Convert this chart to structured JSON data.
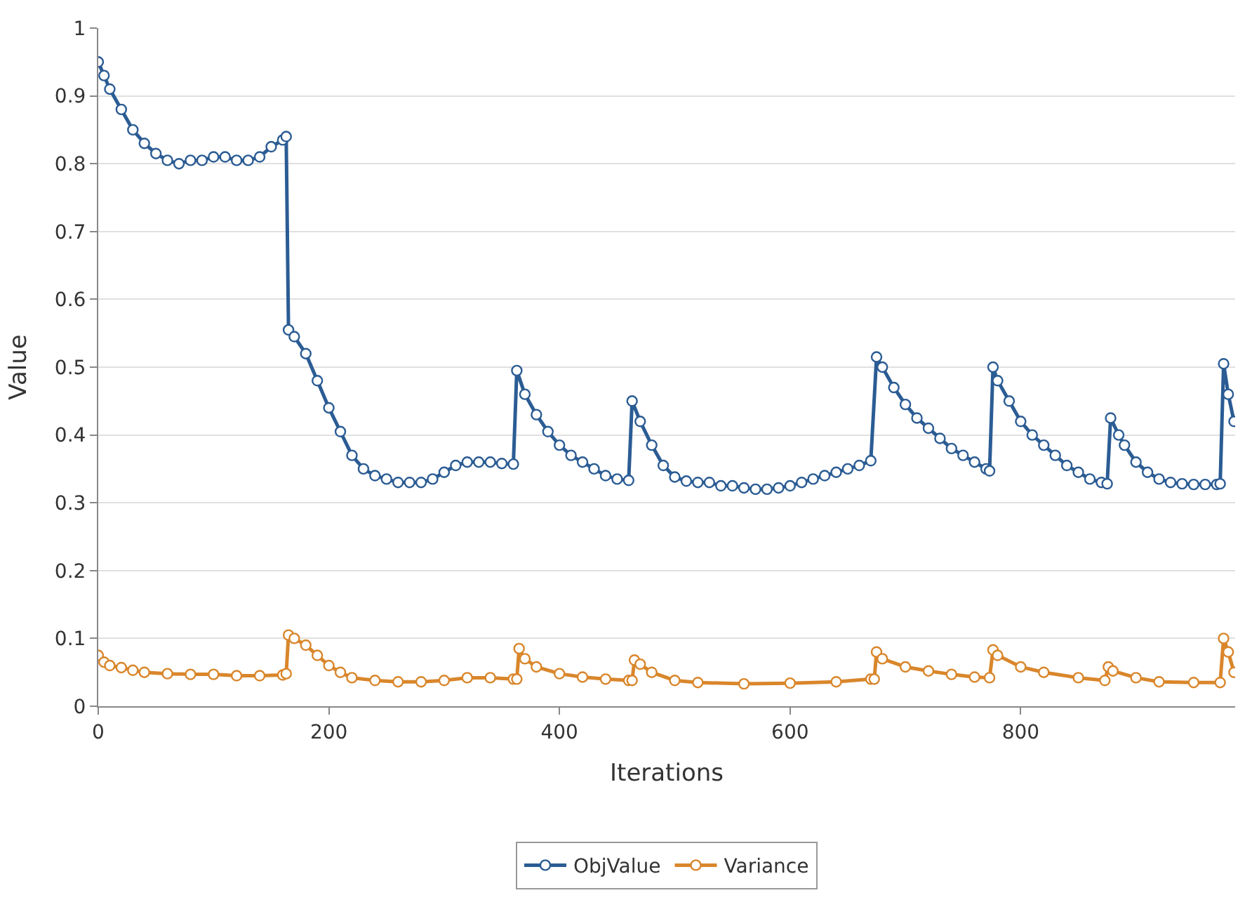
{
  "chart_data": {
    "type": "line",
    "xlabel": "Iterations",
    "ylabel": "Value",
    "xlim": [
      0,
      986
    ],
    "xticks": [
      0,
      200,
      400,
      600,
      800
    ],
    "ylim": [
      0,
      1
    ],
    "yticks": [
      0,
      0.1,
      0.2,
      0.3,
      0.4,
      0.5,
      0.6,
      0.7,
      0.8,
      0.9,
      1
    ],
    "grid": "y",
    "legend": "bottom",
    "marker": "circle",
    "line_style": "solid",
    "series": [
      {
        "name": "ObjValue",
        "color": "#2b5c94",
        "x": [
          0,
          5,
          10,
          20,
          30,
          40,
          50,
          60,
          70,
          80,
          90,
          100,
          110,
          120,
          130,
          140,
          150,
          160,
          163,
          165,
          170,
          180,
          190,
          200,
          210,
          220,
          230,
          240,
          250,
          260,
          270,
          280,
          290,
          300,
          310,
          320,
          330,
          340,
          350,
          360,
          363,
          370,
          380,
          390,
          400,
          410,
          420,
          430,
          440,
          450,
          460,
          463,
          470,
          480,
          490,
          500,
          510,
          520,
          530,
          540,
          550,
          560,
          570,
          580,
          590,
          600,
          610,
          620,
          630,
          640,
          650,
          660,
          670,
          675,
          680,
          690,
          700,
          710,
          720,
          730,
          740,
          750,
          760,
          770,
          773,
          776,
          780,
          790,
          800,
          810,
          820,
          830,
          840,
          850,
          860,
          870,
          875,
          878,
          885,
          890,
          900,
          910,
          920,
          930,
          940,
          950,
          960,
          970,
          973,
          976,
          980,
          985
        ],
        "values": [
          0.95,
          0.93,
          0.91,
          0.88,
          0.85,
          0.83,
          0.815,
          0.805,
          0.8,
          0.805,
          0.805,
          0.81,
          0.81,
          0.805,
          0.805,
          0.81,
          0.825,
          0.835,
          0.84,
          0.555,
          0.545,
          0.52,
          0.48,
          0.44,
          0.405,
          0.37,
          0.35,
          0.34,
          0.335,
          0.33,
          0.33,
          0.33,
          0.335,
          0.345,
          0.355,
          0.36,
          0.36,
          0.36,
          0.358,
          0.357,
          0.495,
          0.46,
          0.43,
          0.405,
          0.385,
          0.37,
          0.36,
          0.35,
          0.34,
          0.335,
          0.333,
          0.45,
          0.42,
          0.385,
          0.355,
          0.338,
          0.332,
          0.33,
          0.33,
          0.325,
          0.325,
          0.322,
          0.32,
          0.32,
          0.322,
          0.325,
          0.33,
          0.335,
          0.34,
          0.345,
          0.35,
          0.355,
          0.362,
          0.515,
          0.5,
          0.47,
          0.445,
          0.425,
          0.41,
          0.395,
          0.38,
          0.37,
          0.36,
          0.35,
          0.347,
          0.5,
          0.48,
          0.45,
          0.42,
          0.4,
          0.385,
          0.37,
          0.355,
          0.345,
          0.335,
          0.33,
          0.328,
          0.425,
          0.4,
          0.385,
          0.36,
          0.345,
          0.335,
          0.33,
          0.328,
          0.327,
          0.327,
          0.327,
          0.328,
          0.505,
          0.46,
          0.42
        ]
      },
      {
        "name": "Variance",
        "color": "#d9862b",
        "x": [
          0,
          5,
          10,
          20,
          30,
          40,
          60,
          80,
          100,
          120,
          140,
          160,
          163,
          165,
          170,
          180,
          190,
          200,
          210,
          220,
          240,
          260,
          280,
          300,
          320,
          340,
          360,
          363,
          365,
          370,
          380,
          400,
          420,
          440,
          460,
          463,
          465,
          470,
          480,
          500,
          520,
          560,
          600,
          640,
          670,
          673,
          675,
          680,
          700,
          720,
          740,
          760,
          773,
          776,
          780,
          800,
          820,
          850,
          873,
          876,
          880,
          900,
          920,
          950,
          973,
          976,
          980,
          985
        ],
        "values": [
          0.075,
          0.065,
          0.06,
          0.057,
          0.053,
          0.05,
          0.048,
          0.047,
          0.047,
          0.045,
          0.045,
          0.046,
          0.048,
          0.105,
          0.1,
          0.09,
          0.075,
          0.06,
          0.05,
          0.042,
          0.038,
          0.036,
          0.036,
          0.038,
          0.042,
          0.042,
          0.04,
          0.04,
          0.085,
          0.07,
          0.058,
          0.048,
          0.043,
          0.04,
          0.038,
          0.038,
          0.068,
          0.062,
          0.05,
          0.038,
          0.035,
          0.033,
          0.034,
          0.036,
          0.04,
          0.04,
          0.08,
          0.07,
          0.058,
          0.052,
          0.047,
          0.043,
          0.042,
          0.083,
          0.075,
          0.058,
          0.05,
          0.042,
          0.038,
          0.058,
          0.052,
          0.042,
          0.036,
          0.035,
          0.035,
          0.1,
          0.08,
          0.05
        ]
      }
    ]
  }
}
